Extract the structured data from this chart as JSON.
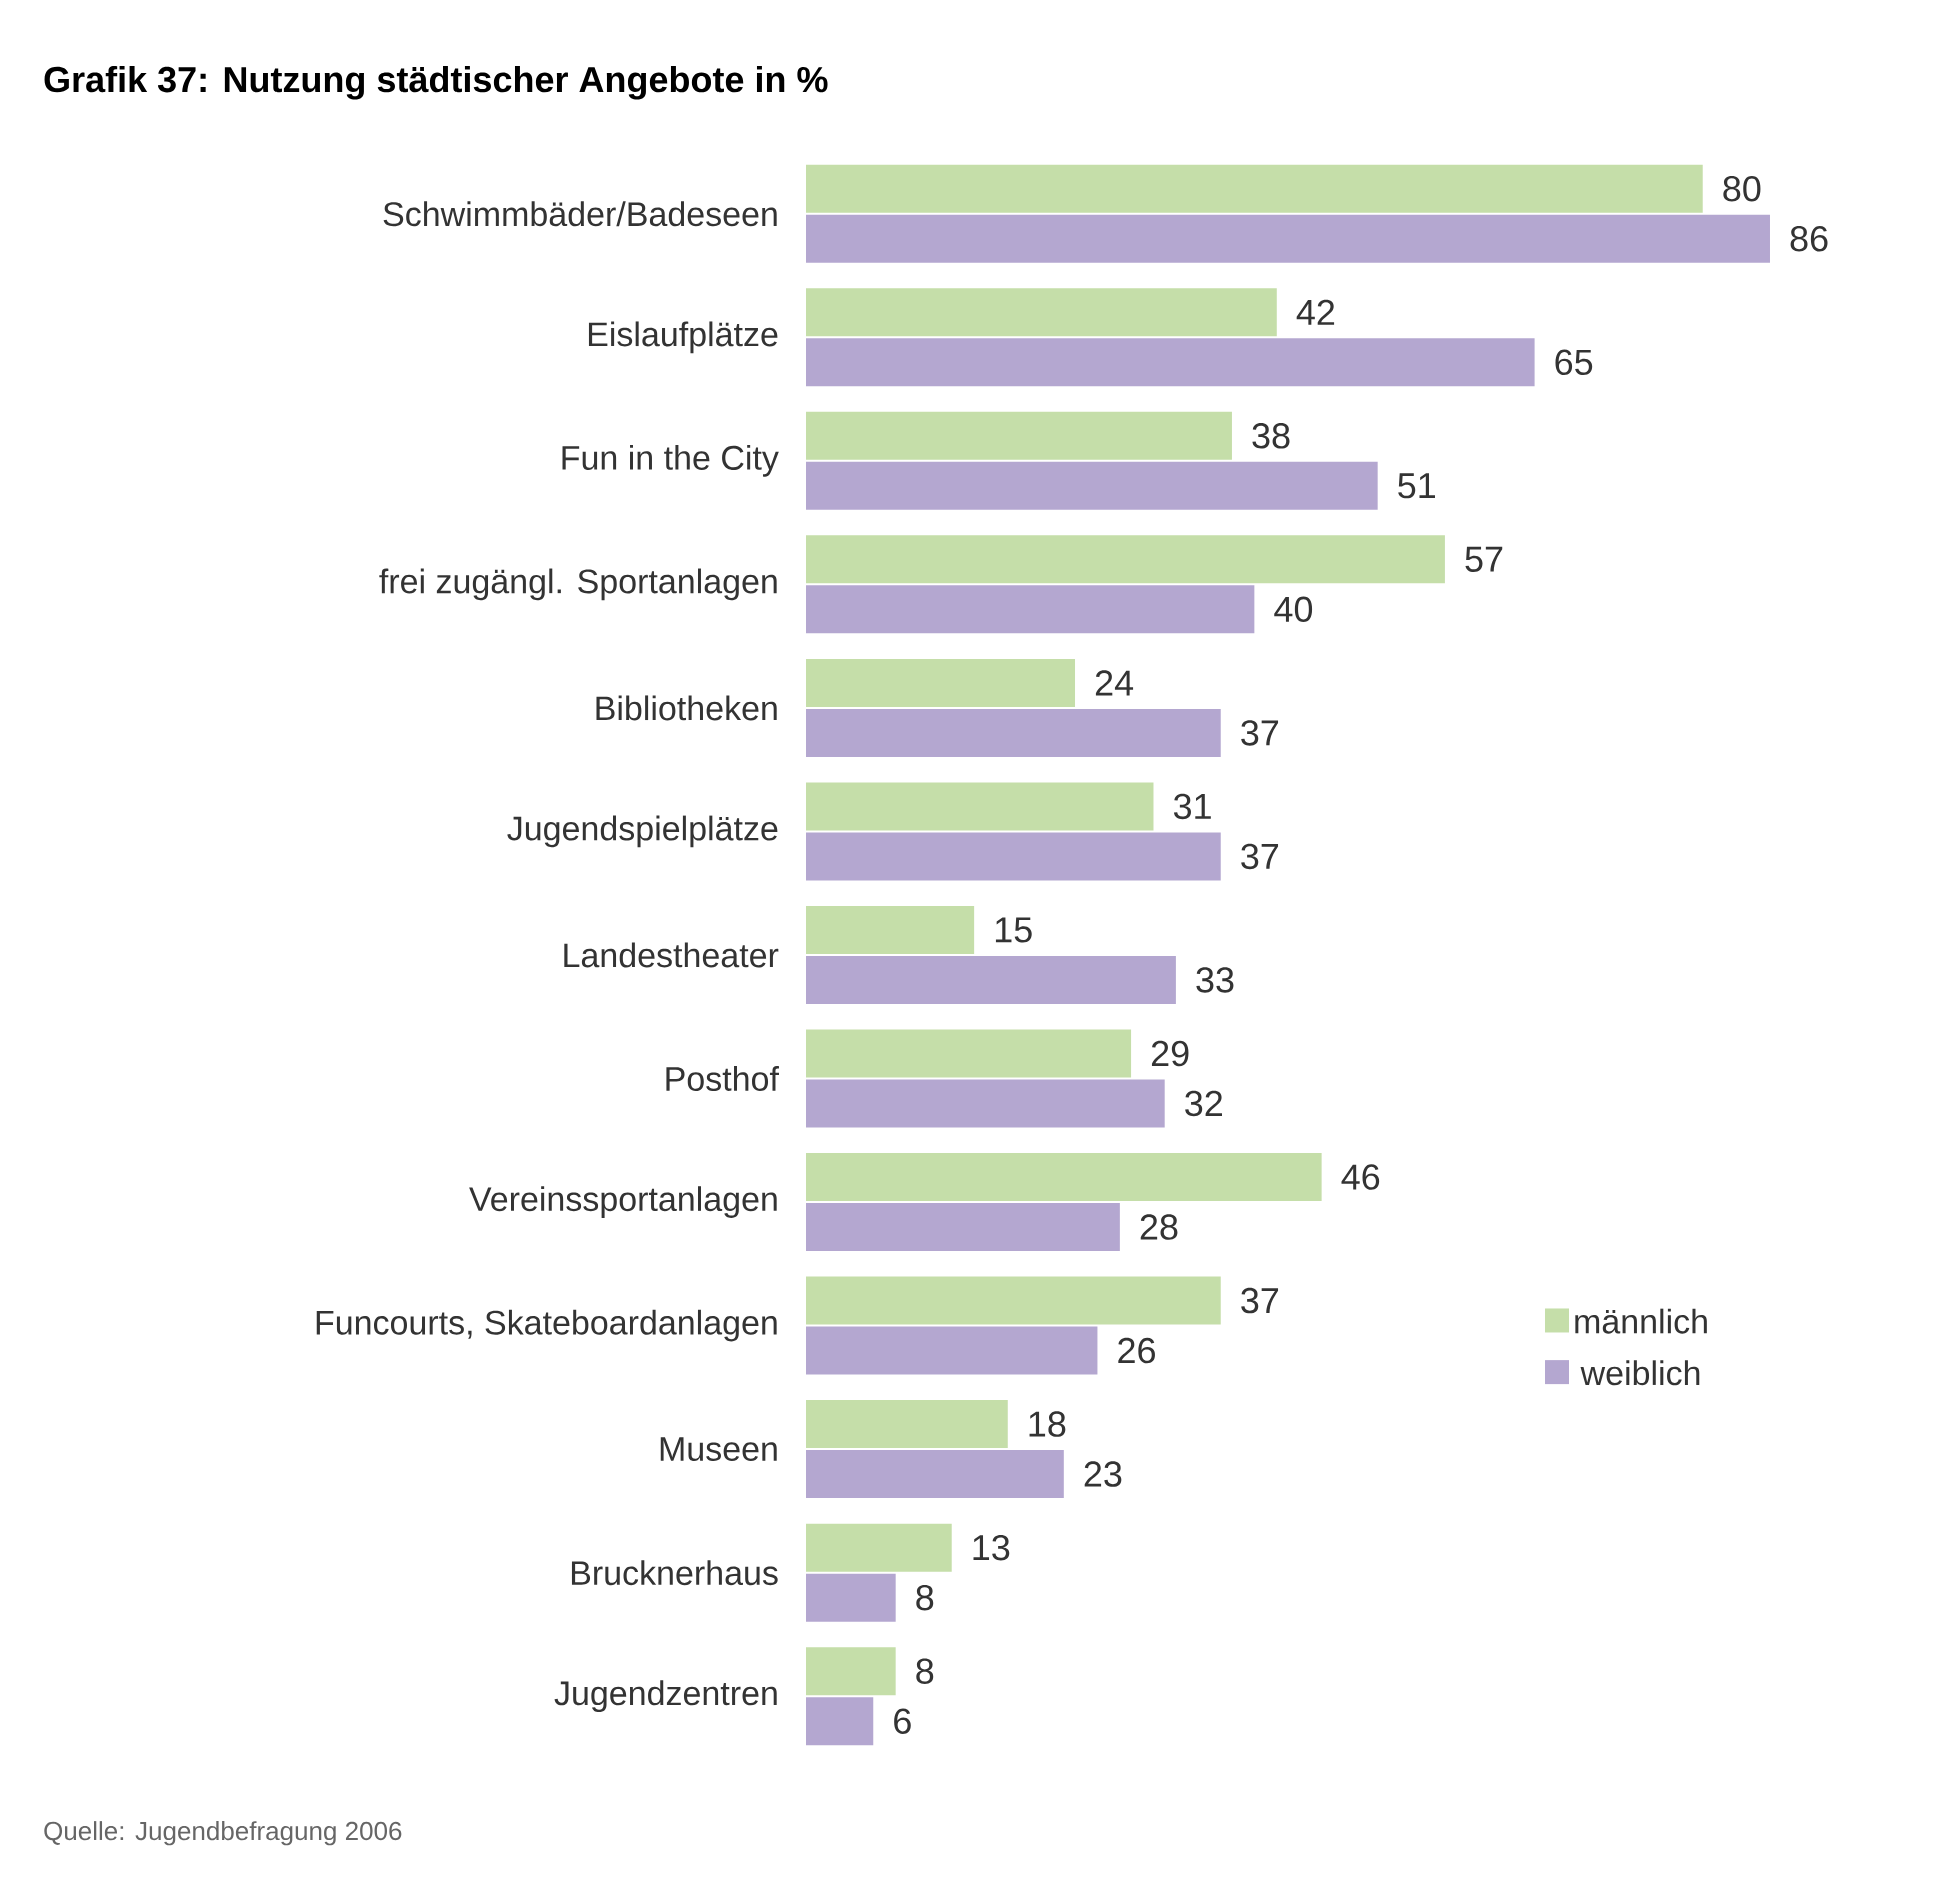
{
  "chart_data": {
    "type": "bar",
    "orientation": "horizontal",
    "title": "Grafik 37: Nutzung städtischer Angebote in %",
    "categories": [
      "Schwimmbäder/Badeseen",
      "Eislaufplätze",
      "Fun in the City",
      "frei zugängl. Sportanlagen",
      "Bibliotheken",
      "Jugendspielplätze",
      "Landestheater",
      "Posthof",
      "Vereinssportanlagen",
      "Funcourts, Skateboardanlagen",
      "Museen",
      "Brucknerhaus",
      "Jugendzentren"
    ],
    "series": [
      {
        "name": "männlich",
        "color": "#c5dea9",
        "values": [
          80,
          42,
          38,
          57,
          24,
          31,
          15,
          29,
          46,
          37,
          18,
          13,
          8
        ]
      },
      {
        "name": "weiblich",
        "color": "#b4a7d0",
        "values": [
          86,
          65,
          51,
          40,
          37,
          37,
          33,
          32,
          28,
          26,
          23,
          8,
          6
        ]
      }
    ],
    "data_labels": true,
    "legend": "right",
    "annotations": [
      "Quelle: Jugendbefragung 2006"
    ]
  }
}
